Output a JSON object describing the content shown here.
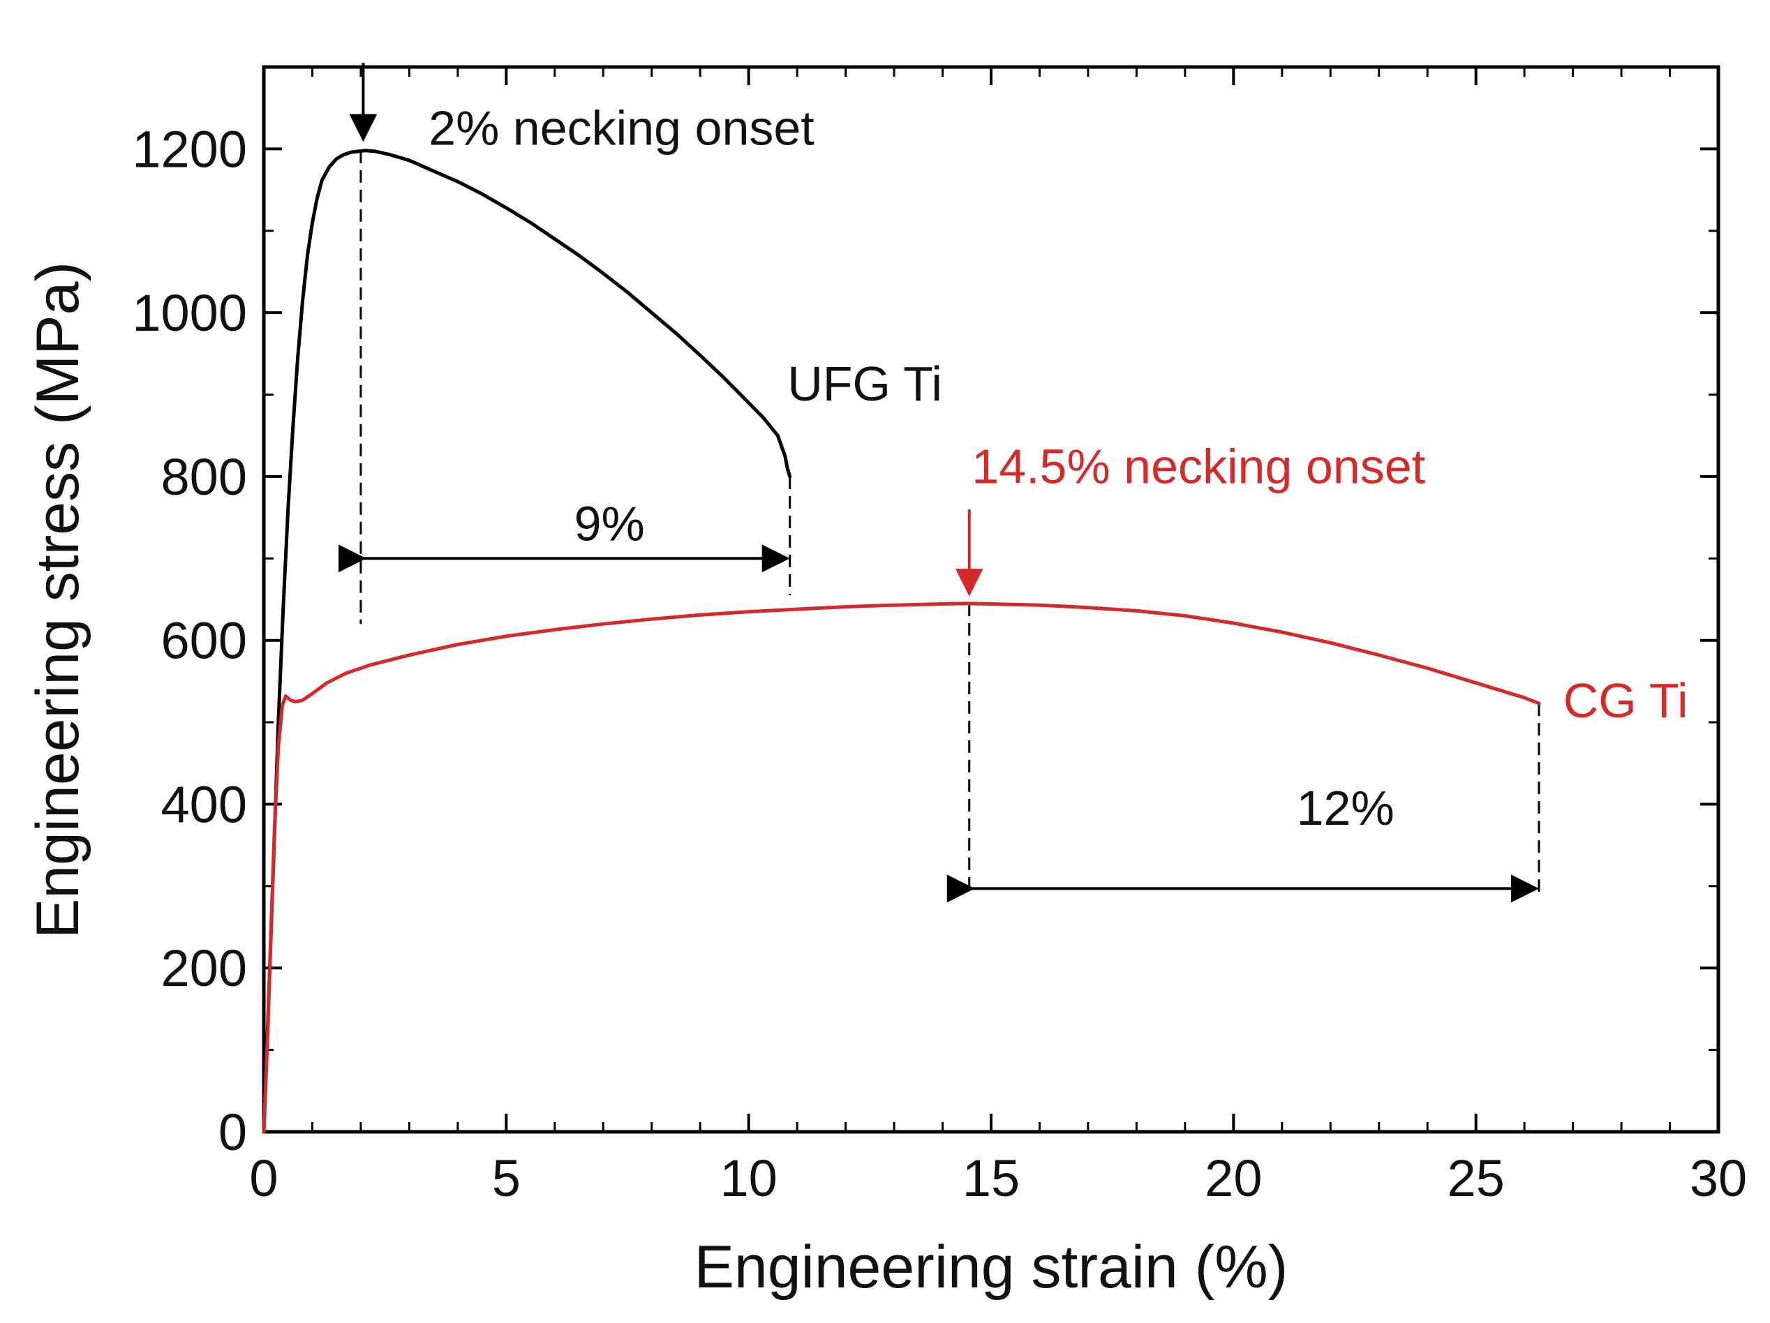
{
  "chart_data": {
    "type": "line",
    "title": "",
    "xlabel": "Engineering strain (%)",
    "ylabel": "Engineering stress (MPa)",
    "xlim": [
      0,
      30
    ],
    "ylim": [
      0,
      1300
    ],
    "x_ticks": [
      0,
      5,
      10,
      15,
      20,
      25,
      30
    ],
    "y_ticks": [
      0,
      200,
      400,
      600,
      800,
      1000,
      1200
    ],
    "x_tick_labels": [
      "0",
      "5",
      "10",
      "15",
      "20",
      "25",
      "30"
    ],
    "y_tick_labels": [
      "0",
      "200",
      "400",
      "600",
      "800",
      "1000",
      "1200"
    ],
    "grid": false,
    "series": [
      {
        "name": "UFG Ti",
        "label": "UFG Ti",
        "color": "#000000",
        "x": [
          0,
          0.1,
          0.2,
          0.3,
          0.4,
          0.5,
          0.6,
          0.7,
          0.8,
          0.9,
          1.0,
          1.1,
          1.2,
          1.35,
          1.5,
          1.65,
          1.8,
          1.95,
          2.1,
          2.3,
          2.6,
          3.0,
          3.5,
          4.0,
          4.5,
          5.0,
          5.5,
          6.0,
          6.5,
          7.0,
          7.5,
          8.0,
          8.5,
          9.0,
          9.5,
          10.0,
          10.3,
          10.6,
          10.75,
          10.8,
          10.85
        ],
        "y": [
          0,
          160,
          330,
          500,
          640,
          760,
          860,
          945,
          1015,
          1070,
          1110,
          1140,
          1162,
          1178,
          1188,
          1193,
          1196,
          1197,
          1198,
          1197,
          1193,
          1186,
          1173,
          1160,
          1145,
          1128,
          1110,
          1090,
          1070,
          1048,
          1025,
          1000,
          975,
          948,
          920,
          890,
          872,
          850,
          825,
          810,
          800
        ]
      },
      {
        "name": "CG Ti",
        "label": "CG Ti",
        "color": "#d42a2a",
        "x": [
          0,
          0.08,
          0.15,
          0.22,
          0.3,
          0.38,
          0.45,
          0.55,
          0.65,
          0.8,
          1.0,
          1.3,
          1.7,
          2.2,
          3,
          4,
          5,
          6,
          7,
          8,
          9,
          10,
          11,
          12,
          13,
          14,
          14.5,
          15,
          16,
          17,
          18,
          19,
          20,
          21,
          22,
          23,
          24,
          25,
          26,
          26.3
        ],
        "y": [
          0,
          120,
          250,
          370,
          470,
          520,
          532,
          527,
          525,
          527,
          535,
          548,
          560,
          570,
          582,
          595,
          605,
          613,
          620,
          626,
          631,
          635,
          638,
          641,
          643,
          644.5,
          645,
          644.5,
          643,
          640,
          636,
          630,
          621,
          610,
          597,
          582,
          566,
          548,
          530,
          523
        ]
      }
    ],
    "annotations": [
      {
        "name": "ufg-necking-label",
        "text": "2% necking onset",
        "x": 3.4,
        "y": 1205,
        "color": "#111111"
      },
      {
        "name": "ufg-curve-label",
        "text": "UFG Ti",
        "x": 10.8,
        "y": 893,
        "color": "#111111"
      },
      {
        "name": "ufg-span-label",
        "text": "9%",
        "x": 6.4,
        "y": 722,
        "color": "#111111"
      },
      {
        "name": "cg-necking-label",
        "text": "14.5% necking onset",
        "x": 14.6,
        "y": 792,
        "color": "#d42a2a"
      },
      {
        "name": "cg-curve-label",
        "text": "CG Ti",
        "x": 26.8,
        "y": 506,
        "color": "#d42a2a"
      },
      {
        "name": "cg-span-label",
        "text": "12%",
        "x": 21.3,
        "y": 375,
        "color": "#111111"
      }
    ],
    "reference_lines": [
      {
        "name": "ufg-necking-guide",
        "x": 2.0,
        "y_from": 1198,
        "y_to": 620,
        "color": "#000000"
      },
      {
        "name": "ufg-fracture-guide",
        "x": 10.85,
        "y_from": 800,
        "y_to": 655,
        "color": "#000000"
      },
      {
        "name": "cg-necking-guide",
        "x": 14.55,
        "y_from": 645,
        "y_to": 290,
        "color": "#000000"
      },
      {
        "name": "cg-fracture-guide",
        "x": 26.3,
        "y_from": 523,
        "y_to": 290,
        "color": "#000000"
      }
    ],
    "spans": [
      {
        "name": "ufg-uniform-span-arrow",
        "x_from": 2.0,
        "x_to": 10.85,
        "y": 700
      },
      {
        "name": "cg-uniform-span-arrow",
        "x_from": 14.55,
        "x_to": 26.3,
        "y": 297
      }
    ],
    "markers": [
      {
        "name": "ufg-necking-arrow",
        "x": 2.05,
        "y_from": 1305,
        "y_to": 1212,
        "color": "#000000"
      },
      {
        "name": "cg-necking-arrow",
        "x": 14.55,
        "y_from": 760,
        "y_to": 657,
        "color": "#d42a2a"
      }
    ]
  }
}
